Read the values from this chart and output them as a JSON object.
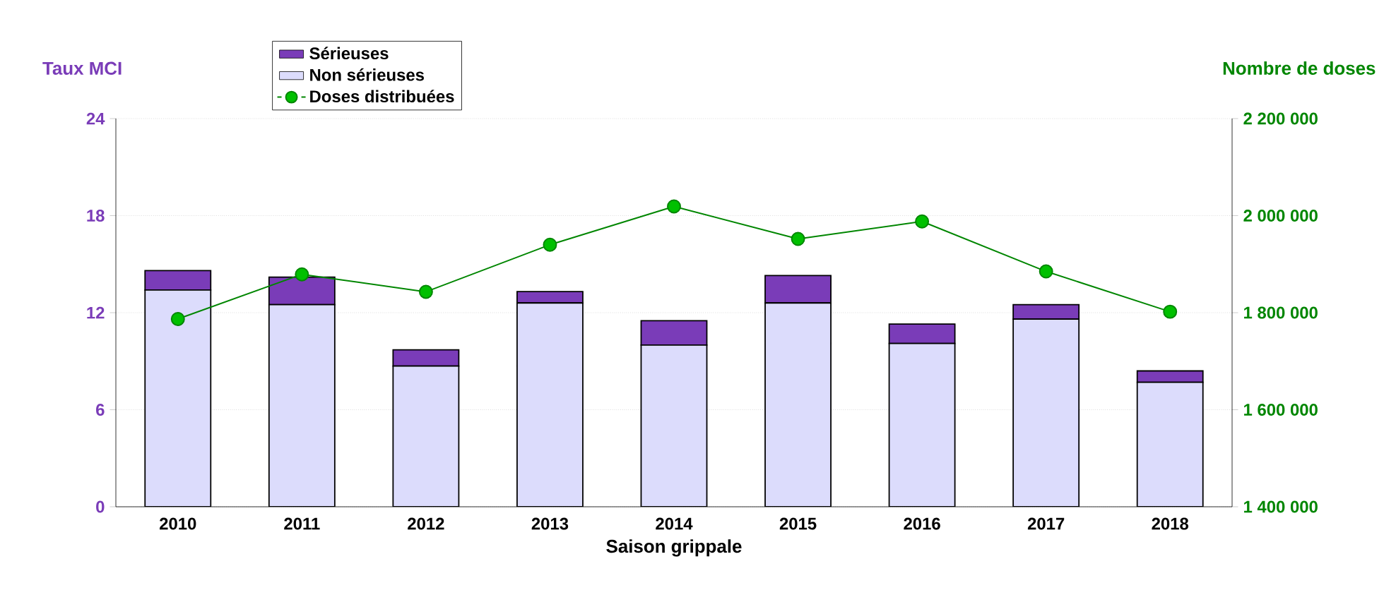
{
  "chart_data": {
    "type": "bar",
    "stacked": true,
    "xlabel": "Saison grippale",
    "ylabel": "Taux MCI",
    "y2label": "Nombre de doses",
    "categories": [
      "2010",
      "2011",
      "2012",
      "2013",
      "2014",
      "2015",
      "2016",
      "2017",
      "2018"
    ],
    "series": [
      {
        "name": "Non sérieuses",
        "color": "#dcdcfc",
        "values": [
          13.4,
          12.5,
          8.7,
          12.6,
          10.0,
          12.6,
          10.1,
          11.6,
          7.7
        ]
      },
      {
        "name": "Sérieuses",
        "color": "#7a3cb8",
        "values": [
          1.2,
          1.7,
          1.0,
          0.7,
          1.5,
          1.7,
          1.2,
          0.9,
          0.7
        ]
      },
      {
        "name": "Doses distribuées",
        "type": "line",
        "axis": "y2",
        "color": "#00c000",
        "marker": "circle",
        "values": [
          1787000,
          1879000,
          1843000,
          1940000,
          2019000,
          1952000,
          1988000,
          1885000,
          1802000
        ]
      }
    ],
    "ylim": [
      0,
      24
    ],
    "yticks": [
      0,
      6,
      12,
      18,
      24
    ],
    "y2lim": [
      1400000,
      2200000
    ],
    "y2ticks": [
      {
        "value": 1400000,
        "label": "1 400 000"
      },
      {
        "value": 1600000,
        "label": "1 600 000"
      },
      {
        "value": 1800000,
        "label": "1 800 000"
      },
      {
        "value": 2000000,
        "label": "2 000 000"
      },
      {
        "value": 2200000,
        "label": "2 200 000"
      }
    ],
    "grid": "y",
    "legend": "top left"
  }
}
